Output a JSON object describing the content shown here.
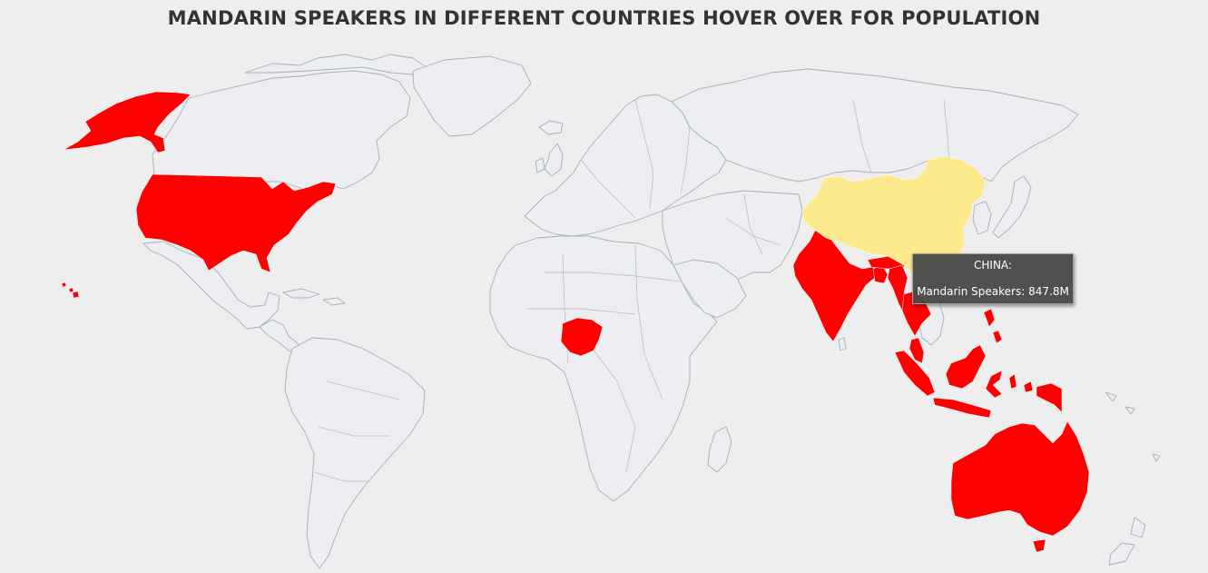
{
  "title": "MANDARIN SPEAKERS IN DIFFERENT COUNTRIES HOVER OVER FOR POPULATION",
  "colors": {
    "background": "#eeeeee",
    "land": "#eceef1",
    "land_border": "#a6afbd",
    "highlight": "#ff0000",
    "hovered": "#fdea8c",
    "tooltip_bg": "#4a4a4a",
    "tooltip_text": "#ffffff"
  },
  "highlighted_countries": [
    "United States",
    "India",
    "Bangladesh",
    "Myanmar",
    "Thailand",
    "Malaysia",
    "Indonesia",
    "Philippines",
    "Papua New Guinea",
    "Australia",
    "Nigeria"
  ],
  "hovered_country": "China",
  "tooltip": {
    "country": "CHINA:",
    "label": "Mandarin Speakers:",
    "value": "847.8M"
  }
}
